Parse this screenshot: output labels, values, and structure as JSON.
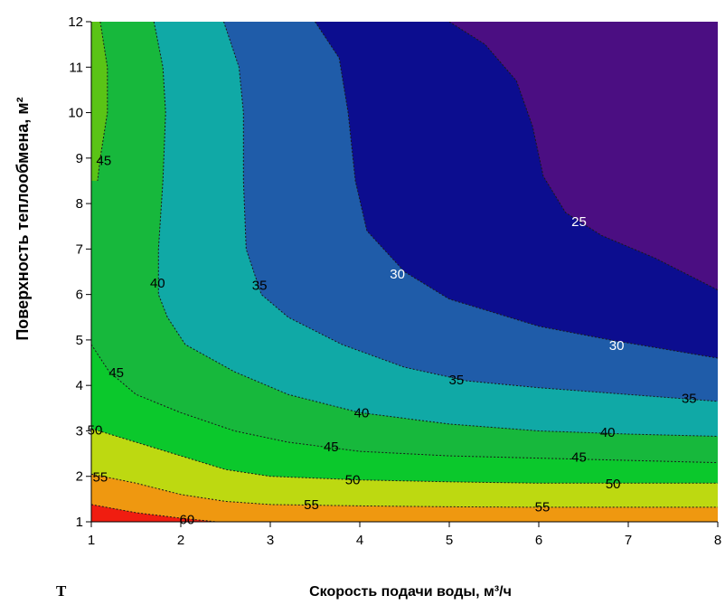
{
  "chart_data": {
    "type": "contour",
    "title": "",
    "xlabel": "Скорость подачи воды, м³/ч",
    "ylabel": "Поверхность теплообмена, м²",
    "corner_label": "T",
    "xlim": [
      1,
      8
    ],
    "ylim": [
      1,
      12
    ],
    "x_ticks": [
      "1",
      "2",
      "3",
      "4",
      "5",
      "6",
      "7",
      "8"
    ],
    "y_ticks": [
      "1",
      "2",
      "3",
      "4",
      "5",
      "6",
      "7",
      "8",
      "9",
      "10",
      "11",
      "12"
    ],
    "levels": [
      25,
      30,
      35,
      40,
      45,
      50,
      55,
      60
    ],
    "band_colors": {
      "below_25": "#4b0e82",
      "25_30": "#0c0d8f",
      "30_35": "#1f5ca9",
      "35_40": "#10a9a6",
      "40_45": "#17b83c",
      "45_50": "#0bc82c",
      "50_55": "#bdd911",
      "55_60": "#ef9810",
      "above_60": "#f01d10",
      "left_edge_above_45": "#5ac416"
    },
    "contours": [
      {
        "level": 25,
        "points": [
          [
            5.0,
            12.0
          ],
          [
            5.4,
            11.5
          ],
          [
            5.75,
            10.7
          ],
          [
            5.93,
            9.7
          ],
          [
            6.05,
            8.6
          ],
          [
            6.3,
            7.8
          ],
          [
            6.7,
            7.3
          ],
          [
            7.3,
            6.8
          ],
          [
            8.0,
            6.1
          ]
        ]
      },
      {
        "level": 30,
        "points": [
          [
            3.5,
            12.0
          ],
          [
            3.77,
            11.2
          ],
          [
            3.87,
            10.0
          ],
          [
            3.95,
            8.5
          ],
          [
            4.08,
            7.4
          ],
          [
            4.5,
            6.5
          ],
          [
            5.0,
            5.9
          ],
          [
            5.5,
            5.6
          ],
          [
            6.0,
            5.3
          ],
          [
            6.8,
            5.0
          ],
          [
            8.0,
            4.6
          ]
        ]
      },
      {
        "level": 35,
        "points": [
          [
            2.48,
            12.0
          ],
          [
            2.65,
            11.0
          ],
          [
            2.7,
            10.0
          ],
          [
            2.7,
            8.5
          ],
          [
            2.73,
            7.0
          ],
          [
            2.9,
            6.0
          ],
          [
            3.2,
            5.5
          ],
          [
            3.8,
            4.9
          ],
          [
            4.5,
            4.4
          ],
          [
            5.2,
            4.1
          ],
          [
            6.0,
            3.95
          ],
          [
            7.0,
            3.8
          ],
          [
            8.0,
            3.65
          ]
        ]
      },
      {
        "level": 40,
        "points": [
          [
            1.7,
            12.0
          ],
          [
            1.8,
            11.0
          ],
          [
            1.83,
            10.0
          ],
          [
            1.8,
            8.5
          ],
          [
            1.75,
            7.0
          ],
          [
            1.75,
            6.0
          ],
          [
            1.85,
            5.5
          ],
          [
            2.05,
            4.9
          ],
          [
            2.6,
            4.3
          ],
          [
            3.2,
            3.8
          ],
          [
            4.0,
            3.4
          ],
          [
            5.0,
            3.15
          ],
          [
            6.0,
            3.0
          ],
          [
            7.0,
            2.93
          ],
          [
            8.0,
            2.88
          ]
        ]
      },
      {
        "level": 45,
        "points": [
          [
            1.1,
            12.0
          ],
          [
            1.18,
            11.0
          ],
          [
            1.18,
            10.0
          ],
          [
            1.1,
            9.0
          ],
          [
            1.07,
            8.5
          ]
        ]
      },
      {
        "level": 45,
        "points": [
          [
            1.0,
            4.9
          ],
          [
            1.2,
            4.3
          ],
          [
            1.5,
            3.8
          ],
          [
            2.0,
            3.4
          ],
          [
            2.6,
            3.0
          ],
          [
            3.2,
            2.75
          ],
          [
            4.0,
            2.55
          ],
          [
            5.0,
            2.45
          ],
          [
            6.0,
            2.4
          ],
          [
            7.0,
            2.35
          ],
          [
            8.0,
            2.3
          ]
        ]
      },
      {
        "level": 50,
        "points": [
          [
            1.0,
            3.05
          ],
          [
            1.5,
            2.75
          ],
          [
            2.0,
            2.45
          ],
          [
            2.5,
            2.15
          ],
          [
            3.0,
            2.0
          ],
          [
            4.0,
            1.92
          ],
          [
            5.0,
            1.88
          ],
          [
            6.0,
            1.85
          ],
          [
            7.0,
            1.85
          ],
          [
            8.0,
            1.85
          ]
        ]
      },
      {
        "level": 55,
        "points": [
          [
            1.0,
            2.05
          ],
          [
            1.5,
            1.85
          ],
          [
            2.0,
            1.6
          ],
          [
            2.5,
            1.45
          ],
          [
            3.0,
            1.38
          ],
          [
            4.0,
            1.35
          ],
          [
            5.0,
            1.33
          ],
          [
            6.0,
            1.32
          ],
          [
            7.0,
            1.32
          ],
          [
            8.0,
            1.32
          ]
        ]
      },
      {
        "level": 60,
        "points": [
          [
            1.0,
            1.38
          ],
          [
            1.5,
            1.2
          ],
          [
            2.0,
            1.08
          ],
          [
            2.4,
            1.0
          ]
        ]
      }
    ],
    "contour_labels": [
      {
        "text": "25",
        "x": 6.45,
        "y": 7.6,
        "color": "#ffffff"
      },
      {
        "text": "30",
        "x": 4.42,
        "y": 6.45,
        "color": "#ffffff"
      },
      {
        "text": "30",
        "x": 6.87,
        "y": 4.88,
        "color": "#ffffff"
      },
      {
        "text": "35",
        "x": 2.88,
        "y": 6.2,
        "color": "#000000"
      },
      {
        "text": "35",
        "x": 5.08,
        "y": 4.12,
        "color": "#000000"
      },
      {
        "text": "35",
        "x": 7.68,
        "y": 3.72,
        "color": "#000000"
      },
      {
        "text": "40",
        "x": 1.74,
        "y": 6.25,
        "color": "#000000"
      },
      {
        "text": "40",
        "x": 4.02,
        "y": 3.4,
        "color": "#000000"
      },
      {
        "text": "40",
        "x": 6.77,
        "y": 2.97,
        "color": "#000000"
      },
      {
        "text": "45",
        "x": 1.14,
        "y": 8.95,
        "color": "#000000"
      },
      {
        "text": "45",
        "x": 1.28,
        "y": 4.28,
        "color": "#000000"
      },
      {
        "text": "45",
        "x": 3.68,
        "y": 2.65,
        "color": "#000000"
      },
      {
        "text": "45",
        "x": 6.45,
        "y": 2.42,
        "color": "#000000"
      },
      {
        "text": "50",
        "x": 1.04,
        "y": 3.02,
        "color": "#000000"
      },
      {
        "text": "50",
        "x": 3.92,
        "y": 1.92,
        "color": "#000000"
      },
      {
        "text": "50",
        "x": 6.83,
        "y": 1.84,
        "color": "#000000"
      },
      {
        "text": "55",
        "x": 1.1,
        "y": 1.98,
        "color": "#000000"
      },
      {
        "text": "55",
        "x": 3.46,
        "y": 1.38,
        "color": "#000000"
      },
      {
        "text": "55",
        "x": 6.04,
        "y": 1.33,
        "color": "#000000"
      },
      {
        "text": "60",
        "x": 2.07,
        "y": 1.05,
        "color": "#000000"
      }
    ],
    "grid": false,
    "legend": "none"
  }
}
